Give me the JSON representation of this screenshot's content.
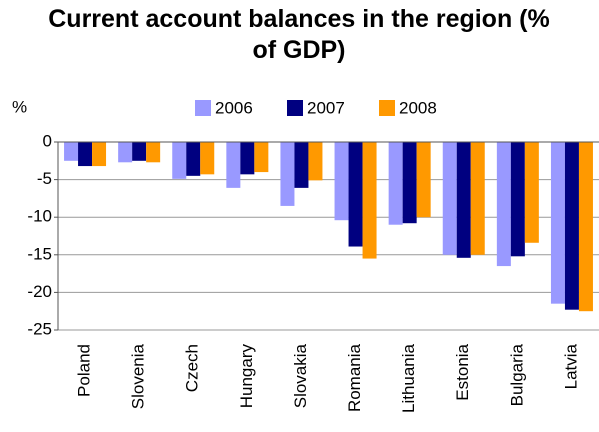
{
  "chart_data": {
    "type": "bar",
    "title": "Current account balances in the region (% of GDP)",
    "y_label": "%",
    "categories": [
      "Poland",
      "Slovenia",
      "Czech",
      "Hungary",
      "Slovakia",
      "Romania",
      "Lithuania",
      "Estonia",
      "Bulgaria",
      "Latvia"
    ],
    "series": [
      {
        "name": "2006",
        "color": "#9999ff",
        "values": [
          -2.5,
          -2.7,
          -4.9,
          -6.1,
          -8.5,
          -10.4,
          -11.0,
          -15.0,
          -16.5,
          -21.5
        ]
      },
      {
        "name": "2007",
        "color": "#000080",
        "values": [
          -3.2,
          -2.5,
          -4.5,
          -4.3,
          -6.1,
          -13.9,
          -10.8,
          -15.4,
          -15.2,
          -22.3
        ]
      },
      {
        "name": "2008",
        "color": "#ff9900",
        "values": [
          -3.2,
          -2.7,
          -4.3,
          -4.0,
          -5.1,
          -15.5,
          -10.0,
          -15.0,
          -13.4,
          -22.5
        ]
      }
    ],
    "ylim": [
      -25,
      0
    ],
    "yticks": [
      0,
      -5,
      -10,
      -15,
      -20,
      -25
    ],
    "grid": true,
    "legend": "top"
  }
}
